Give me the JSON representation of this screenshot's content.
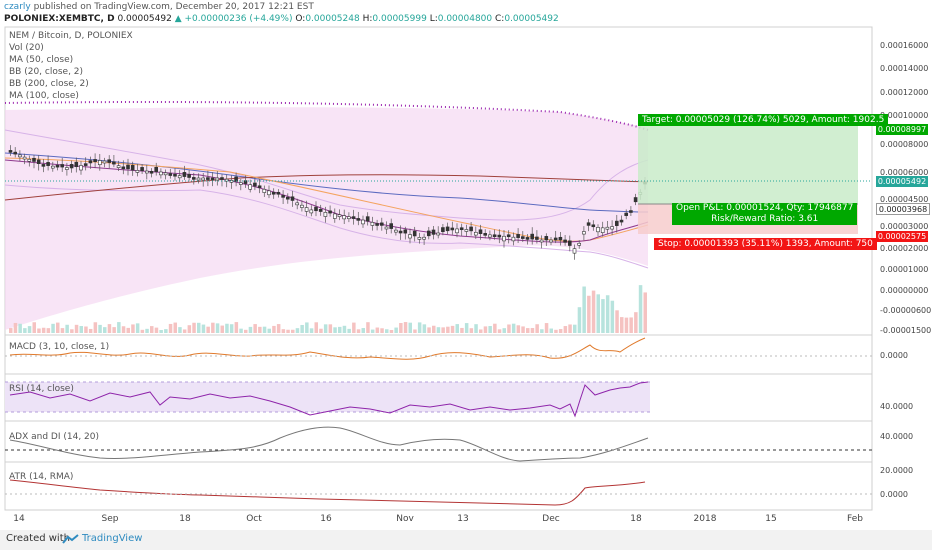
{
  "header": {
    "author": "czarly",
    "published": "published on TradingView.com, December 20, 2017 12:21 EST",
    "symbol": "POLONIEX:XEMBTC, D",
    "last": "0.00005492",
    "change": "+0.00000236 (+4.49%)",
    "o_label": "O:",
    "o_value": "0.00005248",
    "h_label": "H:",
    "h_value": "0.00005999",
    "l_label": "L:",
    "l_value": "0.00004800",
    "c_label": "C:",
    "c_value": "0.00005492"
  },
  "legend": {
    "title": "NEM / Bitcoin, D, POLONIEX",
    "items": [
      "Vol (20)",
      "MA (50, close)",
      "BB (20, close, 2)",
      "BB (200, close, 2)",
      "MA (100, close)"
    ]
  },
  "price_axis": [
    "0.00016000",
    "0.00014000",
    "0.00012000",
    "0.00010000",
    "0.00008000",
    "0.00006000",
    "0.00004500",
    "0.00003000",
    "0.00002000",
    "0.00001000",
    "0.00000000",
    "-0.00000600",
    "-0.00001500"
  ],
  "price_tags": {
    "target": "0.00008997",
    "current": "0.00005492",
    "open": "0.00003968",
    "stop": "0.00002575"
  },
  "position": {
    "target_text": "Target: 0.00005029 (126.74%) 5029, Amount: 1902.5",
    "open_pl": "Open P&L: 0.00001524, Qty: 17946877",
    "rr": "Risk/Reward Ratio: 3.61",
    "stop_text": "Stop: 0.00001393 (35.11%) 1393, Amount: 750"
  },
  "panes": {
    "macd": {
      "label": "MACD (3, 10, close, 1)",
      "axis": [
        "0.0000"
      ]
    },
    "rsi": {
      "label": "RSI (14, close)",
      "axis": [
        "40.0000"
      ]
    },
    "adx": {
      "label": "ADX and DI (14, 20)",
      "axis": [
        "40.0000",
        "20.0000"
      ]
    },
    "atr": {
      "label": "ATR (14, RMA)",
      "axis": [
        "0.0000"
      ]
    }
  },
  "x_axis": [
    "14",
    "Sep",
    "18",
    "Oct",
    "16",
    "Nov",
    "13",
    "Dec",
    "18",
    "2018",
    "15",
    "Feb"
  ],
  "footer": {
    "created": "Created with",
    "brand": "TradingView"
  },
  "colors": {
    "up": "#26a69a",
    "down": "#ef5350",
    "target": "#00a800",
    "stop": "#f21515",
    "ma100": "#9c27b0"
  }
}
